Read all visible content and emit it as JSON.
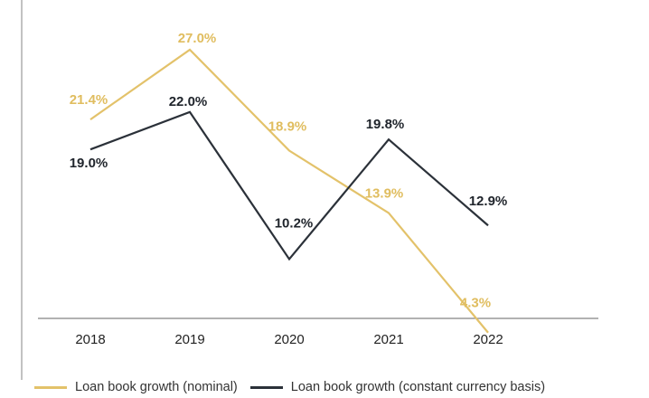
{
  "chart_data": {
    "type": "line",
    "categories": [
      "2018",
      "2019",
      "2020",
      "2021",
      "2022"
    ],
    "series": [
      {
        "name": "Loan book growth (nominal)",
        "values": [
          21.4,
          27.0,
          18.9,
          13.9,
          4.3
        ],
        "labels": [
          "21.4%",
          "27.0%",
          "18.9%",
          "13.9%",
          "4.3%"
        ],
        "color": "#e3c26a"
      },
      {
        "name": "Loan book growth (constant currency basis)",
        "values": [
          19.0,
          22.0,
          10.2,
          19.8,
          12.9
        ],
        "labels": [
          "19.0%",
          "22.0%",
          "10.2%",
          "19.8%",
          "12.9%"
        ],
        "color": "#2b3139"
      }
    ],
    "title": "",
    "xlabel": "",
    "ylabel": "",
    "ylim": [
      0,
      30
    ],
    "grid": false,
    "legend_position": "bottom"
  }
}
